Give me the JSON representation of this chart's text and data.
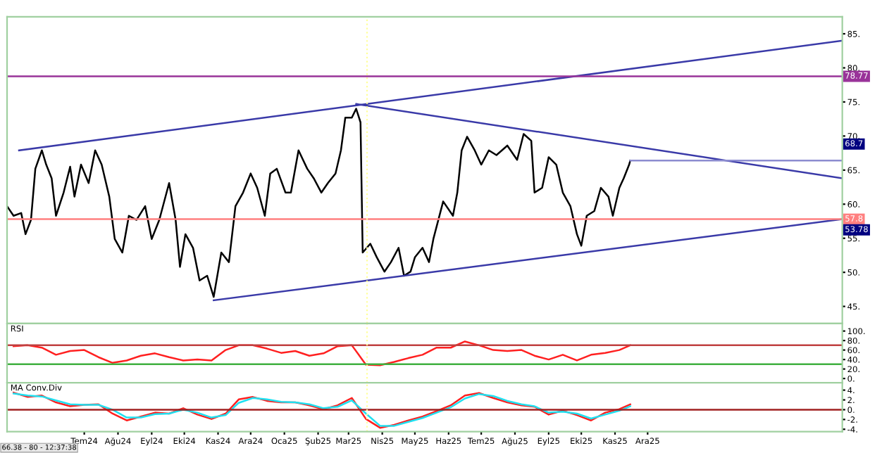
{
  "chart_data": [
    {
      "type": "line",
      "ylim": [
        42.5,
        87.5
      ],
      "xlim": [
        "2024-04-21",
        "2026-05-29"
      ],
      "yticks": [
        {
          "value": 45,
          "label": "45."
        },
        {
          "value": 50,
          "label": "50."
        },
        {
          "value": 55,
          "label": "55."
        },
        {
          "value": 60,
          "label": "60."
        },
        {
          "value": 65,
          "label": "65."
        },
        {
          "value": 70,
          "label": "70."
        },
        {
          "value": 75,
          "label": "75."
        },
        {
          "value": 80,
          "label": "80."
        },
        {
          "value": 85,
          "label": "85."
        }
      ],
      "tick_labels": "y",
      "grid": false,
      "legend": false,
      "series": [
        {
          "color": "#000000",
          "x": [
            "2024-04-21",
            "2024-04-27",
            "2024-05-04",
            "2024-05-08",
            "2024-05-13",
            "2024-05-17",
            "2024-05-23",
            "2024-05-27",
            "2024-06-01",
            "2024-06-05",
            "2024-06-12",
            "2024-06-18",
            "2024-06-22",
            "2024-06-28",
            "2024-07-05",
            "2024-07-11",
            "2024-07-17",
            "2024-07-24",
            "2024-07-29",
            "2024-08-05",
            "2024-08-11",
            "2024-08-18",
            "2024-08-26",
            "2024-09-01",
            "2024-09-08",
            "2024-09-17",
            "2024-09-23",
            "2024-09-27",
            "2024-10-02",
            "2024-10-09",
            "2024-10-15",
            "2024-10-22",
            "2024-10-28",
            "2024-11-04",
            "2024-11-11",
            "2024-11-17",
            "2024-11-24",
            "2024-12-01",
            "2024-12-07",
            "2024-12-14",
            "2024-12-19",
            "2024-12-25",
            "2025-01-02",
            "2025-01-07",
            "2025-01-14",
            "2025-01-22",
            "2025-01-28",
            "2025-02-04",
            "2025-02-10",
            "2025-02-17",
            "2025-02-22",
            "2025-02-26",
            "2025-03-04",
            "2025-03-08",
            "2025-03-12",
            "2025-03-14",
            "2025-03-21",
            "2025-03-27",
            "2025-04-03",
            "2025-04-09",
            "2025-04-16",
            "2025-04-21",
            "2025-04-27",
            "2025-05-01",
            "2025-05-08",
            "2025-05-14",
            "2025-05-18",
            "2025-05-27",
            "2025-06-05",
            "2025-06-09",
            "2025-06-13",
            "2025-06-18",
            "2025-06-25",
            "2025-07-01",
            "2025-07-08",
            "2025-07-15",
            "2025-07-25",
            "2025-08-03",
            "2025-08-09",
            "2025-08-16",
            "2025-08-19",
            "2025-08-26",
            "2025-09-01",
            "2025-09-08",
            "2025-09-14",
            "2025-09-21",
            "2025-09-27",
            "2025-10-01",
            "2025-10-06",
            "2025-10-13",
            "2025-10-19",
            "2025-10-26",
            "2025-10-30",
            "2025-11-05",
            "2025-11-09",
            "2025-11-14",
            "2025-11-15"
          ],
          "values": [
            59.7,
            58.3,
            58.7,
            55.6,
            57.7,
            65.2,
            67.9,
            65.8,
            63.8,
            58.3,
            61.7,
            65.5,
            61.1,
            65.8,
            63.1,
            67.9,
            65.8,
            61.1,
            54.9,
            52.9,
            58.3,
            57.7,
            59.7,
            54.9,
            57.7,
            63.1,
            57.7,
            50.8,
            55.6,
            53.6,
            48.8,
            49.5,
            46.4,
            52.9,
            51.5,
            59.7,
            61.7,
            64.5,
            62.4,
            58.3,
            64.5,
            65.2,
            61.7,
            61.7,
            67.9,
            65.2,
            63.8,
            61.7,
            63.1,
            64.5,
            67.9,
            72.7,
            72.7,
            74.0,
            72.0,
            52.9,
            54.2,
            52.2,
            50.1,
            51.5,
            53.6,
            49.5,
            50.1,
            52.2,
            53.6,
            51.5,
            54.9,
            60.4,
            58.3,
            61.7,
            67.9,
            69.9,
            67.9,
            65.8,
            67.9,
            67.2,
            68.6,
            66.5,
            70.3,
            69.3,
            61.7,
            62.4,
            66.9,
            65.8,
            61.7,
            59.7,
            55.6,
            53.9,
            58.3,
            59.0,
            62.4,
            61.1,
            58.3,
            62.4,
            63.8,
            65.8,
            66.4
          ]
        },
        {
          "color": "#3a3aa8",
          "x": [
            "2024-05-02",
            "2026-05-29"
          ],
          "values": [
            67.9,
            84.0
          ]
        },
        {
          "color": "#3a3aa8",
          "x": [
            "2025-03-08",
            "2026-05-29"
          ],
          "values": [
            74.7,
            63.8
          ]
        },
        {
          "color": "#3a3aa8",
          "x": [
            "2024-10-28",
            "2026-05-29"
          ],
          "values": [
            45.9,
            57.8
          ]
        },
        {
          "color": "#8c8cd0",
          "x": [
            "2025-11-15",
            "2026-05-29"
          ],
          "values": [
            66.4,
            66.4
          ]
        }
      ],
      "ref_lines": [
        {
          "axis": "y",
          "value": 78.77,
          "label": "78.77",
          "color": "#993399"
        },
        {
          "axis": "y",
          "value": 57.8,
          "label": "57.8",
          "color": "#ff8080"
        },
        {
          "axis": "x",
          "value": "2025-03-18",
          "color": "#ffff99",
          "line_style": "dotted"
        }
      ],
      "annotations": [
        "68.7",
        "53.78"
      ]
    },
    {
      "type": "line",
      "title": "RSI",
      "ylim": [
        -9,
        116
      ],
      "xlim": [
        "2024-04-21",
        "2026-05-29"
      ],
      "yticks": [
        {
          "value": 0,
          "label": "0."
        },
        {
          "value": 20,
          "label": "20."
        },
        {
          "value": 40,
          "label": "40."
        },
        {
          "value": 60,
          "label": "60."
        },
        {
          "value": 80,
          "label": "80."
        },
        {
          "value": 100,
          "label": "100."
        }
      ],
      "tick_labels": "y",
      "grid": false,
      "legend": false,
      "x": [
        "2024-04-27",
        "2024-05-10",
        "2024-05-23",
        "2024-06-05",
        "2024-06-18",
        "2024-07-01",
        "2024-07-14",
        "2024-07-27",
        "2024-08-09",
        "2024-08-22",
        "2024-09-04",
        "2024-09-17",
        "2024-09-30",
        "2024-10-13",
        "2024-10-26",
        "2024-11-08",
        "2024-11-20",
        "2024-12-03",
        "2024-12-16",
        "2024-12-29",
        "2025-01-11",
        "2025-01-24",
        "2025-02-06",
        "2025-02-19",
        "2025-03-04",
        "2025-03-17",
        "2025-03-30",
        "2025-04-12",
        "2025-04-25",
        "2025-05-08",
        "2025-05-21",
        "2025-06-03",
        "2025-06-16",
        "2025-06-29",
        "2025-07-12",
        "2025-07-25",
        "2025-08-07",
        "2025-08-19",
        "2025-09-01",
        "2025-09-14",
        "2025-09-27",
        "2025-10-10",
        "2025-10-23",
        "2025-11-05",
        "2025-11-15"
      ],
      "series": [
        {
          "color": "#ff2020",
          "values": [
            68,
            70,
            65,
            50,
            58,
            60,
            45,
            33,
            38,
            48,
            53,
            45,
            38,
            40,
            38,
            60,
            70,
            70,
            63,
            54,
            58,
            48,
            53,
            68,
            70,
            29,
            28,
            35,
            43,
            50,
            65,
            65,
            78,
            70,
            60,
            58,
            60,
            48,
            40,
            50,
            38,
            50,
            54,
            60,
            70
          ]
        }
      ],
      "ref_lines": [
        {
          "axis": "y",
          "value": 70,
          "color": "#c04040"
        },
        {
          "axis": "y",
          "value": 30,
          "color": "#40b040"
        },
        {
          "axis": "x",
          "value": "2025-03-18",
          "color": "#ffff99",
          "line_style": "dotted"
        }
      ]
    },
    {
      "type": "line",
      "title": "MA Conv.Div",
      "ylim": [
        -4.5,
        5.5
      ],
      "xlim": [
        "2024-04-21",
        "2026-05-29"
      ],
      "yticks": [
        {
          "value": -4,
          "label": "-4."
        },
        {
          "value": -2,
          "label": "-2."
        },
        {
          "value": 0,
          "label": "0."
        },
        {
          "value": 2,
          "label": "2."
        },
        {
          "value": 4,
          "label": "4."
        }
      ],
      "xticks": [
        {
          "value": "2024-07-01",
          "label": "Tem24"
        },
        {
          "value": "2024-08-01",
          "label": "Ağu24"
        },
        {
          "value": "2024-09-01",
          "label": "Eyl24"
        },
        {
          "value": "2024-10-01",
          "label": "Eki24"
        },
        {
          "value": "2024-11-01",
          "label": "Kas24"
        },
        {
          "value": "2024-12-01",
          "label": "Ara24"
        },
        {
          "value": "2025-01-01",
          "label": "Oca25"
        },
        {
          "value": "2025-02-01",
          "label": "Şub25"
        },
        {
          "value": "2025-03-01",
          "label": "Mar25"
        },
        {
          "value": "2025-04-01",
          "label": "Nis25"
        },
        {
          "value": "2025-05-01",
          "label": "May25"
        },
        {
          "value": "2025-06-01",
          "label": "Haz25"
        },
        {
          "value": "2025-07-01",
          "label": "Tem25"
        },
        {
          "value": "2025-08-01",
          "label": "Ağu25"
        },
        {
          "value": "2025-09-01",
          "label": "Eyl25"
        },
        {
          "value": "2025-10-01",
          "label": "Eki25"
        },
        {
          "value": "2025-11-01",
          "label": "Kas25"
        },
        {
          "value": "2025-12-01",
          "label": "Ara25"
        }
      ],
      "grid": false,
      "legend": false,
      "x": [
        "2024-04-27",
        "2024-05-10",
        "2024-05-23",
        "2024-06-05",
        "2024-06-18",
        "2024-07-01",
        "2024-07-14",
        "2024-07-27",
        "2024-08-09",
        "2024-08-22",
        "2024-09-04",
        "2024-09-17",
        "2024-09-30",
        "2024-10-13",
        "2024-10-26",
        "2024-11-08",
        "2024-11-20",
        "2024-12-03",
        "2024-12-16",
        "2024-12-29",
        "2025-01-11",
        "2025-01-24",
        "2025-02-06",
        "2025-02-19",
        "2025-03-04",
        "2025-03-17",
        "2025-03-30",
        "2025-04-12",
        "2025-04-25",
        "2025-05-08",
        "2025-05-21",
        "2025-06-03",
        "2025-06-16",
        "2025-06-29",
        "2025-07-12",
        "2025-07-25",
        "2025-08-07",
        "2025-08-19",
        "2025-09-01",
        "2025-09-14",
        "2025-09-27",
        "2025-10-10",
        "2025-10-23",
        "2025-11-05",
        "2025-11-15"
      ],
      "series": [
        {
          "color": "#ff2020",
          "values": [
            3.5,
            2.6,
            2.9,
            1.5,
            0.7,
            1.0,
            1.1,
            -0.8,
            -2.2,
            -1.4,
            -0.6,
            -0.8,
            0.3,
            -1.0,
            -1.9,
            -0.8,
            2.1,
            2.6,
            1.8,
            1.5,
            1.5,
            0.9,
            0.1,
            0.9,
            2.4,
            -1.9,
            -3.7,
            -3.1,
            -2.2,
            -1.4,
            -0.3,
            0.9,
            2.9,
            3.4,
            2.4,
            1.5,
            0.9,
            0.6,
            -1.0,
            -0.2,
            -1.1,
            -2.2,
            -0.6,
            0.1,
            1.1
          ]
        },
        {
          "color": "#20e0f0",
          "values": [
            3.3,
            2.9,
            2.7,
            1.9,
            1.1,
            1.0,
            1.0,
            0.0,
            -1.6,
            -1.6,
            -0.9,
            -0.8,
            0.0,
            -0.6,
            -1.6,
            -1.1,
            1.4,
            2.4,
            2.1,
            1.6,
            1.5,
            1.1,
            0.3,
            0.6,
            1.9,
            -0.8,
            -3.3,
            -3.3,
            -2.5,
            -1.7,
            -0.6,
            0.5,
            2.3,
            3.2,
            2.8,
            1.8,
            1.1,
            0.7,
            -0.6,
            -0.4,
            -0.8,
            -1.8,
            -1.0,
            -0.2,
            0.7
          ]
        }
      ],
      "ref_lines": [
        {
          "axis": "y",
          "value": 0,
          "color": "#a02020"
        },
        {
          "axis": "x",
          "value": "2025-03-18",
          "color": "#ffff99",
          "line_style": "dotted"
        }
      ],
      "annotations": [
        "66.38 - 80 - 12:37:38"
      ]
    }
  ]
}
